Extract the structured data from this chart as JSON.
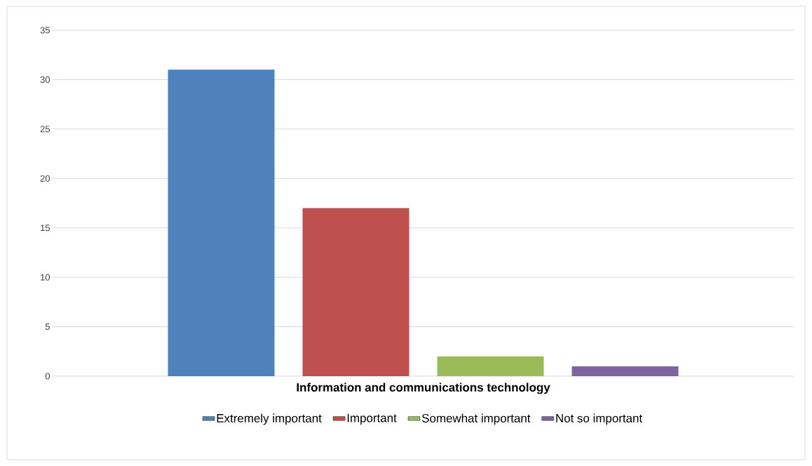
{
  "chart_data": {
    "type": "bar",
    "categories": [
      "Information and communications technology"
    ],
    "series": [
      {
        "name": "Extremely important",
        "color": "#4f81bd",
        "values": [
          31
        ]
      },
      {
        "name": "Important",
        "color": "#c0504d",
        "values": [
          17
        ]
      },
      {
        "name": "Somewhat important",
        "color": "#9bbb59",
        "values": [
          2
        ]
      },
      {
        "name": "Not so important",
        "color": "#8064a2",
        "values": [
          1
        ]
      }
    ],
    "ylim": [
      0,
      35
    ],
    "yticks": [
      0,
      5,
      10,
      15,
      20,
      25,
      30,
      35
    ],
    "grid": "y",
    "legend": "bottom"
  }
}
